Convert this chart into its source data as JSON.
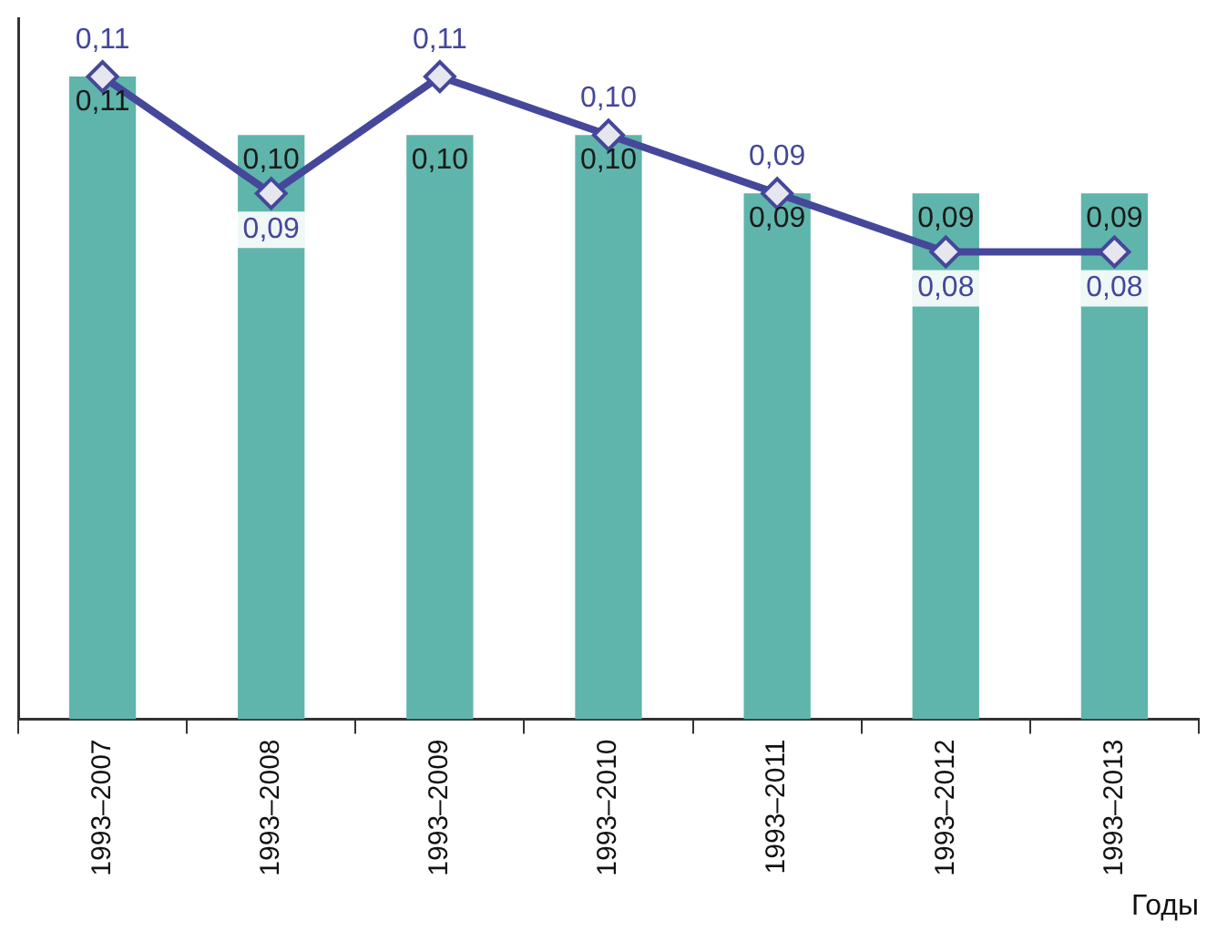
{
  "chart_data": {
    "type": "bar",
    "xlabel": "Годы",
    "categories": [
      "1993–2007",
      "1993–2008",
      "1993–2009",
      "1993–2010",
      "1993–2011",
      "1993–2012",
      "1993–2013"
    ],
    "series": [
      {
        "color": "#5fb5ab",
        "values": [
          0.11,
          0.1,
          0.1,
          0.1,
          0.09,
          0.09,
          0.09
        ],
        "value_labels": [
          "0,11",
          "0,10",
          "0,10",
          "0,10",
          "0,09",
          "0,09",
          "0,09"
        ]
      },
      {
        "type": "line",
        "color": "#45479a",
        "values": [
          0.11,
          0.09,
          0.11,
          0.1,
          0.09,
          0.08,
          0.08
        ],
        "value_labels": [
          "0,11",
          "0,09",
          "0,11",
          "0,10",
          "0,09",
          "0,08",
          "0,08"
        ]
      }
    ],
    "marker": "diamond",
    "line_style": "solid",
    "grid": false,
    "legend": false,
    "tick_labels": "x"
  }
}
